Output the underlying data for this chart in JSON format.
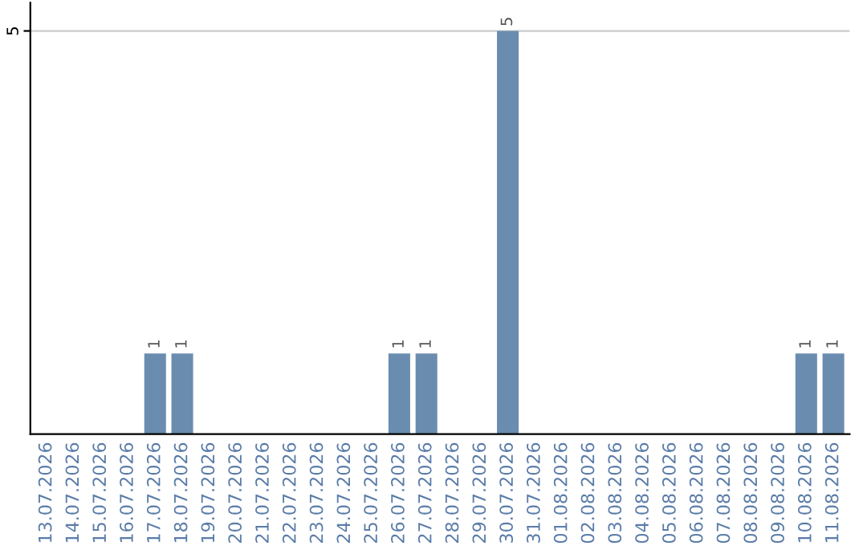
{
  "chart_data": {
    "type": "bar",
    "categories": [
      "13.07.2026",
      "14.07.2026",
      "15.07.2026",
      "16.07.2026",
      "17.07.2026",
      "18.07.2026",
      "19.07.2026",
      "20.07.2026",
      "21.07.2026",
      "22.07.2026",
      "23.07.2026",
      "24.07.2026",
      "25.07.2026",
      "26.07.2026",
      "27.07.2026",
      "28.07.2026",
      "29.07.2026",
      "30.07.2026",
      "31.07.2026",
      "01.08.2026",
      "02.08.2026",
      "03.08.2026",
      "04.08.2026",
      "05.08.2026",
      "06.08.2026",
      "07.08.2026",
      "08.08.2026",
      "09.08.2026",
      "10.08.2026",
      "11.08.2026"
    ],
    "values": [
      0,
      0,
      0,
      0,
      1,
      1,
      0,
      0,
      0,
      0,
      0,
      0,
      0,
      1,
      1,
      0,
      0,
      5,
      0,
      0,
      0,
      0,
      0,
      0,
      0,
      0,
      0,
      0,
      1,
      1
    ],
    "color": "#6a8caf",
    "value_labels": [
      null,
      null,
      null,
      null,
      "1",
      "1",
      null,
      null,
      null,
      null,
      null,
      null,
      null,
      "1",
      "1",
      null,
      null,
      "5",
      null,
      null,
      null,
      null,
      null,
      null,
      null,
      null,
      null,
      null,
      "1",
      "1"
    ],
    "ylim": [
      0,
      5.35
    ],
    "yticks": [
      5
    ],
    "grid": "y"
  }
}
